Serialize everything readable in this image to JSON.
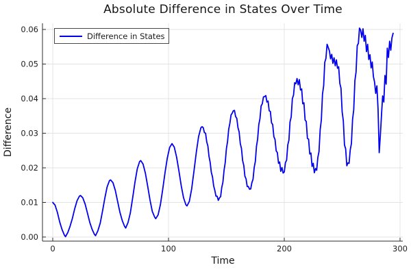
{
  "chart_data": {
    "type": "line",
    "title": "Absolute Difference in States Over Time",
    "xlabel": "Time",
    "ylabel": "Difference",
    "xlim": [
      0,
      300
    ],
    "ylim": [
      0,
      0.06
    ],
    "grid": true,
    "x_ticks": {
      "values": [
        0,
        100,
        200,
        300
      ],
      "labels": [
        "0",
        "100",
        "200",
        "300"
      ]
    },
    "y_ticks": {
      "values": [
        0,
        0.01,
        0.02,
        0.03,
        0.04,
        0.05,
        0.06
      ],
      "labels": [
        "0.00",
        "0.01",
        "0.02",
        "0.03",
        "0.04",
        "0.05",
        "0.06"
      ]
    },
    "legend": {
      "position": "top-left",
      "entries": [
        {
          "label": "Difference in States",
          "color": "#0000ee"
        }
      ]
    },
    "series": [
      {
        "name": "Difference in States",
        "color": "#0000ee",
        "x": [
          0,
          2,
          4,
          6,
          8,
          10,
          11,
          13,
          15,
          17,
          19,
          21,
          23,
          24,
          26,
          28,
          30,
          32,
          34,
          36,
          37,
          39,
          41,
          43,
          45,
          47,
          49,
          50,
          52,
          54,
          56,
          58,
          60,
          62,
          63,
          65,
          67,
          69,
          71,
          73,
          75,
          76,
          78,
          80,
          82,
          84,
          86,
          88,
          89,
          91,
          93,
          95,
          97,
          99,
          101,
          103,
          105,
          107,
          109,
          111,
          113,
          115,
          116,
          118,
          120,
          122,
          124,
          126,
          128,
          129,
          130,
          131,
          132,
          133,
          134,
          135,
          136,
          137,
          138,
          139,
          140,
          141,
          142,
          143,
          144,
          145,
          146,
          147,
          148,
          149,
          150,
          151,
          152,
          153,
          154,
          155,
          156,
          157,
          158,
          159,
          160,
          161,
          162,
          163,
          164,
          165,
          166,
          167,
          168,
          169,
          170,
          171,
          172,
          173,
          174,
          175,
          176,
          177,
          178,
          179,
          180,
          181,
          182,
          183,
          184,
          185,
          186,
          187,
          188,
          189,
          190,
          191,
          192,
          193,
          194,
          195,
          196,
          197,
          198,
          199,
          200,
          201,
          202,
          203,
          204,
          205,
          206,
          207,
          208,
          209,
          210,
          211,
          212,
          213,
          214,
          215,
          216,
          217,
          218,
          219,
          220,
          221,
          222,
          223,
          224,
          225,
          226,
          227,
          228,
          229,
          230,
          231,
          232,
          233,
          234,
          235,
          236,
          237,
          238,
          239,
          240,
          241,
          242,
          243,
          244,
          245,
          246,
          247,
          248,
          249,
          250,
          251,
          252,
          253,
          254,
          255,
          256,
          257,
          258,
          259,
          260,
          261,
          262,
          263,
          264,
          265,
          266,
          267,
          268,
          269,
          270,
          271,
          272,
          273,
          274,
          275,
          276,
          277,
          278,
          279,
          280,
          281,
          282,
          283,
          284,
          285,
          286,
          287,
          288,
          289,
          290,
          291,
          292,
          293,
          294
        ],
        "y": [
          0.01,
          0.0092,
          0.0071,
          0.0044,
          0.0022,
          0.0006,
          0.0001,
          0.0013,
          0.0031,
          0.0054,
          0.0082,
          0.0105,
          0.0118,
          0.012,
          0.0113,
          0.0095,
          0.0069,
          0.0042,
          0.0022,
          0.0008,
          0.0004,
          0.0018,
          0.004,
          0.0075,
          0.0113,
          0.0145,
          0.0163,
          0.0165,
          0.0157,
          0.0135,
          0.0104,
          0.0072,
          0.0048,
          0.0031,
          0.0026,
          0.0042,
          0.0069,
          0.0112,
          0.0158,
          0.0197,
          0.0218,
          0.0221,
          0.0211,
          0.0185,
          0.0147,
          0.0107,
          0.0074,
          0.0058,
          0.0053,
          0.0064,
          0.0094,
          0.0137,
          0.0186,
          0.0229,
          0.0259,
          0.027,
          0.026,
          0.0231,
          0.0191,
          0.0148,
          0.0113,
          0.0093,
          0.009,
          0.0103,
          0.0139,
          0.0191,
          0.0245,
          0.029,
          0.0316,
          0.0319,
          0.0316,
          0.0302,
          0.03,
          0.0275,
          0.0263,
          0.0233,
          0.0216,
          0.0187,
          0.0174,
          0.0148,
          0.0135,
          0.0118,
          0.0118,
          0.0106,
          0.0113,
          0.0117,
          0.0143,
          0.0158,
          0.0193,
          0.0215,
          0.0255,
          0.0276,
          0.0312,
          0.0329,
          0.0353,
          0.0358,
          0.0365,
          0.0366,
          0.0348,
          0.0343,
          0.0316,
          0.0304,
          0.027,
          0.0256,
          0.0221,
          0.0207,
          0.0176,
          0.0168,
          0.0146,
          0.0146,
          0.0138,
          0.0139,
          0.0157,
          0.0167,
          0.0201,
          0.0219,
          0.0262,
          0.0283,
          0.0325,
          0.0342,
          0.0379,
          0.0385,
          0.0405,
          0.0406,
          0.0409,
          0.039,
          0.0393,
          0.0365,
          0.0363,
          0.033,
          0.0325,
          0.029,
          0.0282,
          0.0249,
          0.0244,
          0.0213,
          0.0217,
          0.019,
          0.0201,
          0.0185,
          0.0188,
          0.0215,
          0.0222,
          0.0266,
          0.028,
          0.0333,
          0.0347,
          0.04,
          0.041,
          0.0446,
          0.0443,
          0.0458,
          0.044,
          0.0455,
          0.0425,
          0.0428,
          0.0385,
          0.0388,
          0.0338,
          0.0334,
          0.0285,
          0.0283,
          0.024,
          0.0243,
          0.0204,
          0.0213,
          0.0186,
          0.0198,
          0.0193,
          0.023,
          0.0247,
          0.031,
          0.0338,
          0.0413,
          0.0437,
          0.0505,
          0.0516,
          0.0557,
          0.0548,
          0.0538,
          0.0515,
          0.0528,
          0.0502,
          0.0518,
          0.0495,
          0.0512,
          0.0488,
          0.0492,
          0.0444,
          0.043,
          0.0362,
          0.0336,
          0.0266,
          0.0255,
          0.0206,
          0.0214,
          0.0213,
          0.0252,
          0.027,
          0.034,
          0.0368,
          0.0452,
          0.0477,
          0.0553,
          0.056,
          0.0604,
          0.0598,
          0.0577,
          0.0602,
          0.0566,
          0.0583,
          0.0536,
          0.0557,
          0.0513,
          0.0527,
          0.0489,
          0.0506,
          0.0464,
          0.0448,
          0.0415,
          0.0437,
          0.037,
          0.0244,
          0.0295,
          0.0355,
          0.0408,
          0.039,
          0.0467,
          0.0442,
          0.0546,
          0.0519,
          0.0566,
          0.054,
          0.0576,
          0.0589
        ]
      }
    ]
  },
  "colors": {
    "line": "#0000ee",
    "grid": "#e3e3e3",
    "axis": "#2b2b2b",
    "text": "#151515",
    "legend_border": "#484848",
    "background": "#ffffff"
  }
}
